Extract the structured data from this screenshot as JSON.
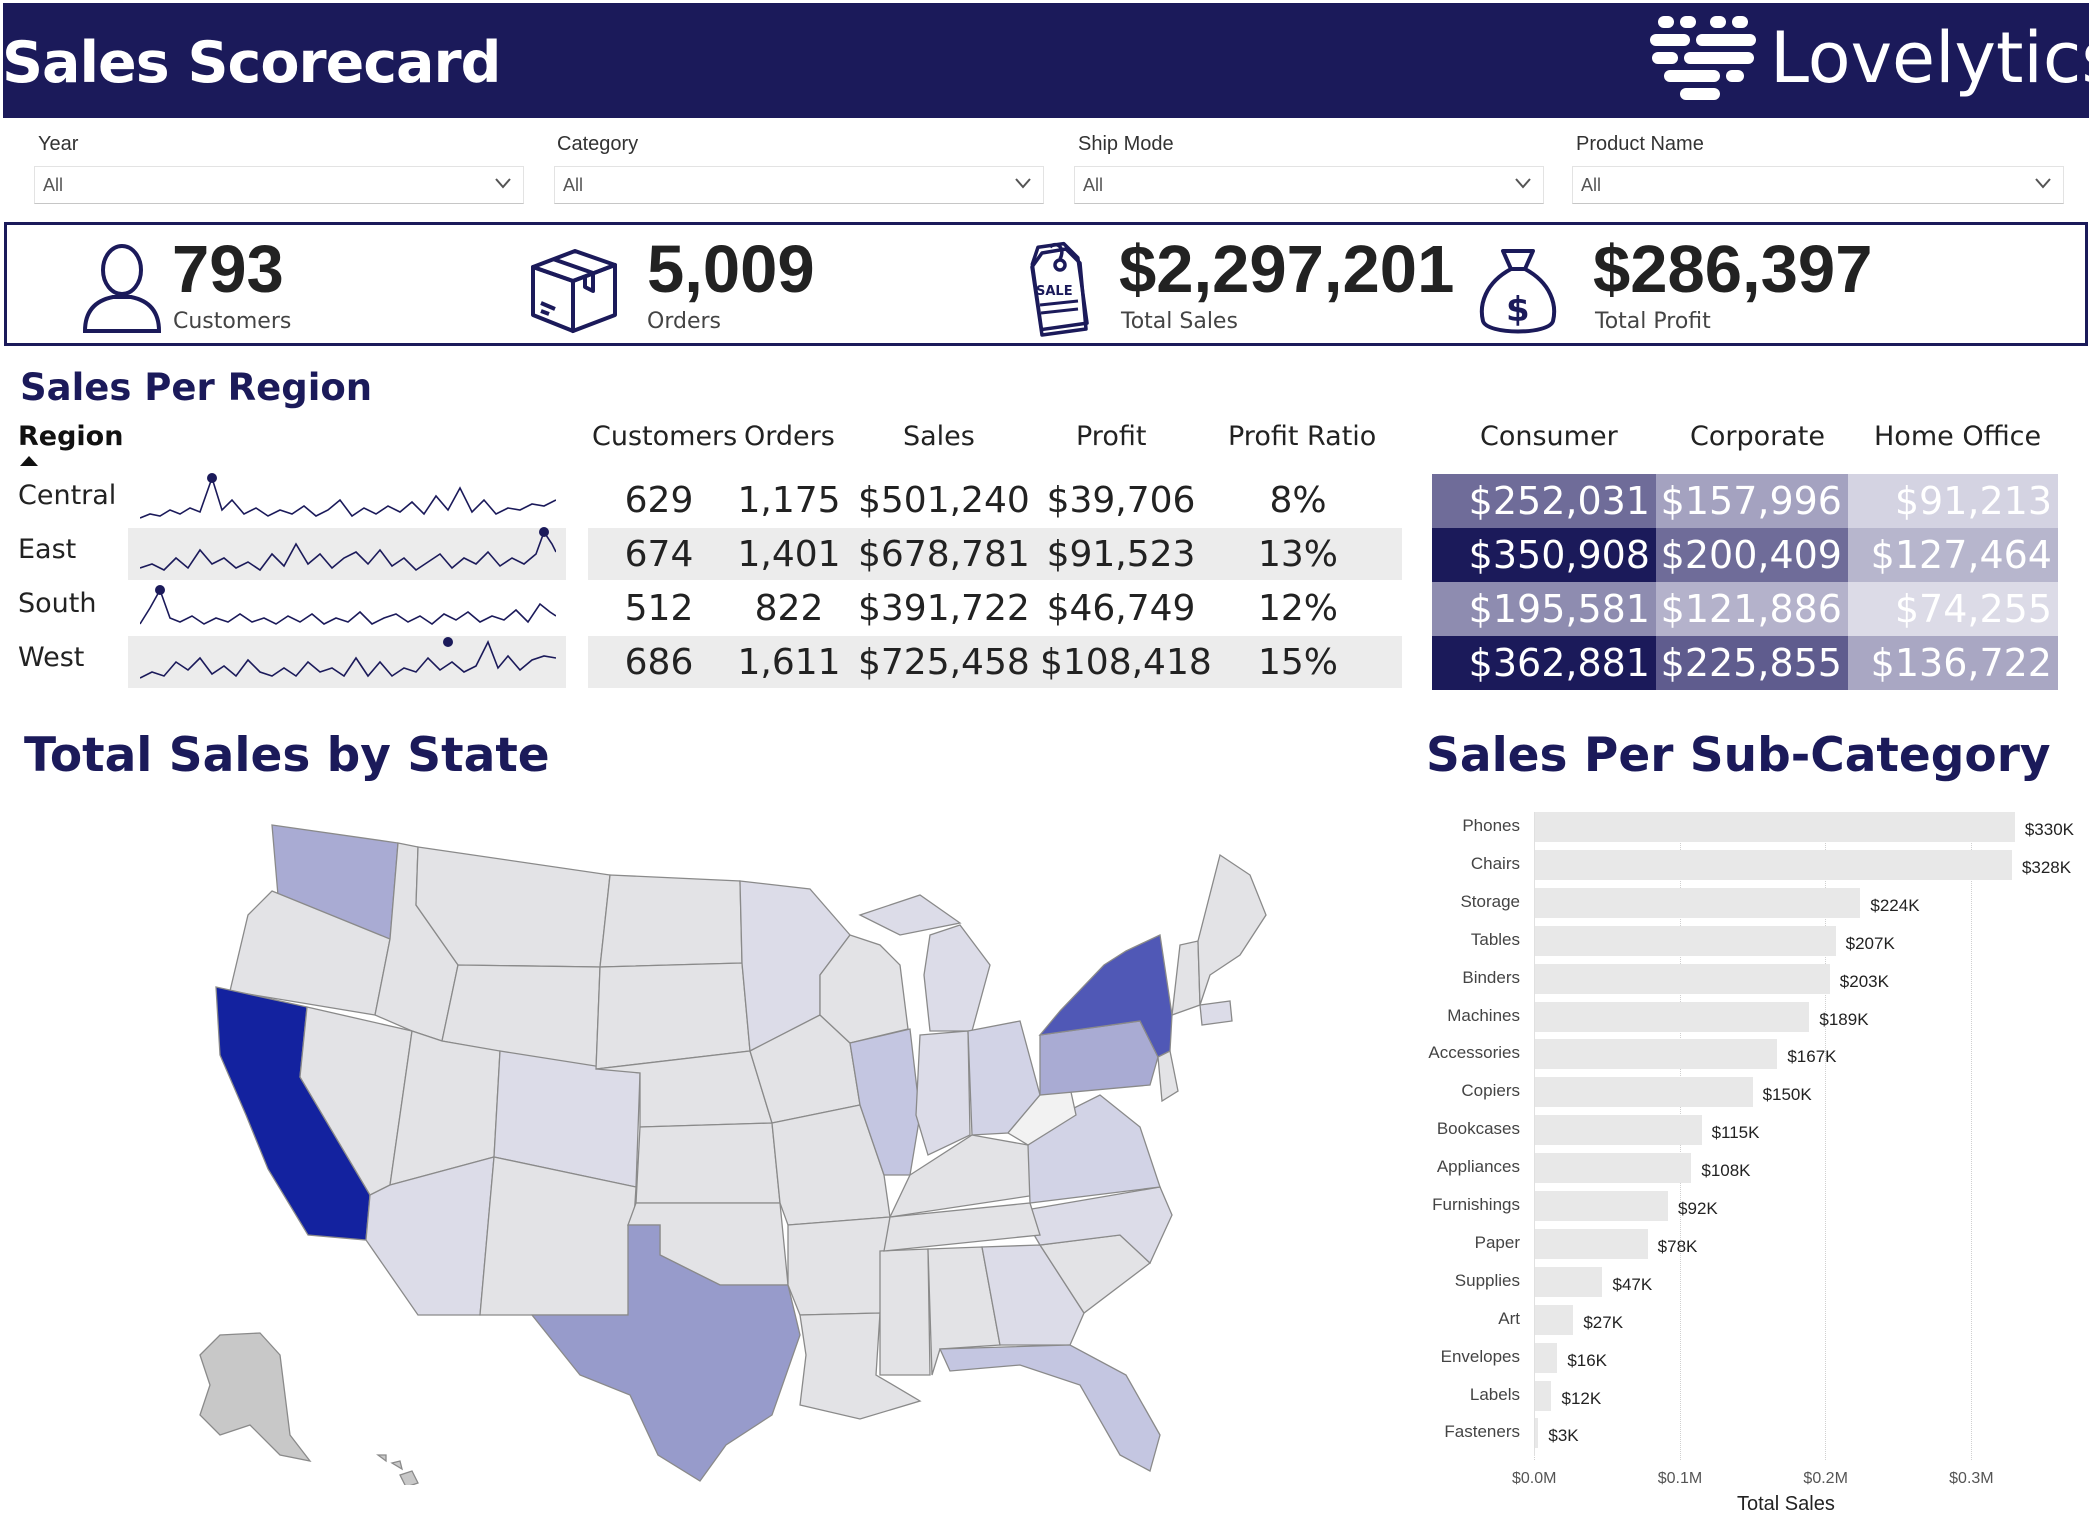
{
  "header": {
    "title": "Sales Scorecard",
    "brand": "Lovelytics"
  },
  "filters": [
    {
      "label": "Year",
      "value": "All"
    },
    {
      "label": "Category",
      "value": "All"
    },
    {
      "label": "Ship Mode",
      "value": "All"
    },
    {
      "label": "Product Name",
      "value": "All"
    }
  ],
  "kpis": [
    {
      "value": "793",
      "label": "Customers",
      "icon": "person-icon"
    },
    {
      "value": "5,009",
      "label": "Orders",
      "icon": "box-icon"
    },
    {
      "value": "$2,297,201",
      "label": "Total Sales",
      "icon": "sale-tag-icon"
    },
    {
      "value": "$286,397",
      "label": "Total Profit",
      "icon": "money-bag-icon"
    }
  ],
  "region": {
    "title": "Sales Per Region",
    "region_header": "Region",
    "columns": [
      "Customers",
      "Orders",
      "Sales",
      "Profit",
      "Profit Ratio"
    ],
    "segments": [
      "Consumer",
      "Corporate",
      "Home Office"
    ],
    "rows": [
      {
        "name": "Central",
        "customers": "629",
        "orders": "1,175",
        "sales": "$501,240",
        "profit": "$39,706",
        "ratio": "8%",
        "consumer": "$252,031",
        "corporate": "$157,996",
        "home": "$91,213"
      },
      {
        "name": "East",
        "customers": "674",
        "orders": "1,401",
        "sales": "$678,781",
        "profit": "$91,523",
        "ratio": "13%",
        "consumer": "$350,908",
        "corporate": "$200,409",
        "home": "$127,464"
      },
      {
        "name": "South",
        "customers": "512",
        "orders": "822",
        "sales": "$391,722",
        "profit": "$46,749",
        "ratio": "12%",
        "consumer": "$195,581",
        "corporate": "$121,886",
        "home": "$74,255"
      },
      {
        "name": "West",
        "customers": "686",
        "orders": "1,611",
        "sales": "$725,458",
        "profit": "$108,418",
        "ratio": "15%",
        "consumer": "$362,881",
        "corporate": "$225,855",
        "home": "$136,722"
      }
    ],
    "heat_colors": {
      "Central": [
        "#6f6c99",
        "#a4a2c0",
        "#d4d3e2"
      ],
      "East": [
        "#1b1a5a",
        "#6f6c99",
        "#b7b6cd"
      ],
      "South": [
        "#8e8cb0",
        "#b4b2cb",
        "#dcdbe7"
      ],
      "West": [
        "#1b1a5a",
        "#5f5c8e",
        "#a9a7c3"
      ]
    }
  },
  "state_map": {
    "title": "Total Sales by State",
    "legend": "none",
    "color_scale": {
      "low": "#e6e6e6",
      "high": "#13229f"
    }
  },
  "chart_data": {
    "type": "bar",
    "orientation": "horizontal",
    "title": "Sales Per Sub-Category",
    "xlabel": "Total Sales",
    "ylabel": "",
    "xlim": [
      0,
      350000
    ],
    "x_ticks": [
      "$0.0M",
      "$0.1M",
      "$0.2M",
      "$0.3M"
    ],
    "categories": [
      "Phones",
      "Chairs",
      "Storage",
      "Tables",
      "Binders",
      "Machines",
      "Accessories",
      "Copiers",
      "Bookcases",
      "Appliances",
      "Furnishings",
      "Paper",
      "Supplies",
      "Art",
      "Envelopes",
      "Labels",
      "Fasteners"
    ],
    "values": [
      330000,
      328000,
      224000,
      207000,
      203000,
      189000,
      167000,
      150000,
      115000,
      108000,
      92000,
      78000,
      47000,
      27000,
      16000,
      12000,
      3000
    ],
    "labels": [
      "$330K",
      "$328K",
      "$224K",
      "$207K",
      "$203K",
      "$189K",
      "$167K",
      "$150K",
      "$115K",
      "$108K",
      "$92K",
      "$78K",
      "$47K",
      "$27K",
      "$16K",
      "$12K",
      "$3K"
    ]
  }
}
